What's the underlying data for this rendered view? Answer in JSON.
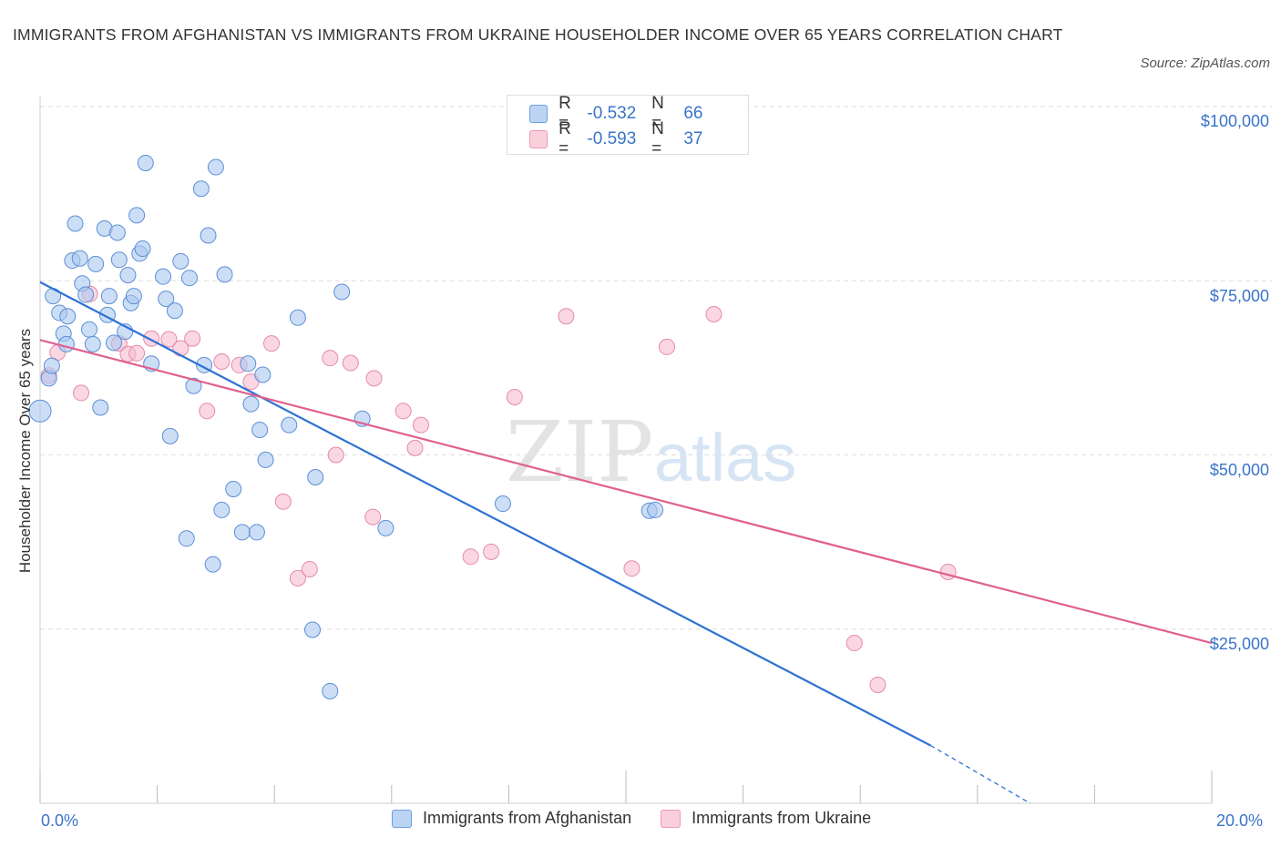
{
  "title": "IMMIGRANTS FROM AFGHANISTAN VS IMMIGRANTS FROM UKRAINE HOUSEHOLDER INCOME OVER 65 YEARS CORRELATION CHART",
  "source": "Source: ZipAtlas.com",
  "watermark": {
    "zip": "ZIP",
    "atlas": "atlas"
  },
  "legend_top": [
    {
      "r_label": "R =",
      "r_value": "-0.532",
      "n_label": "N =",
      "n_value": "66",
      "color": "#aac8f0"
    },
    {
      "r_label": "R =",
      "r_value": "-0.593",
      "n_label": "N =",
      "n_value": "37",
      "color": "#f7bdd0"
    }
  ],
  "chart_data": {
    "type": "scatter",
    "title": "IMMIGRANTS FROM AFGHANISTAN VS IMMIGRANTS FROM UKRAINE HOUSEHOLDER INCOME OVER 65 YEARS CORRELATION CHART",
    "xlabel": "",
    "ylabel": "Householder Income Over 65 years",
    "xlim": [
      0,
      20
    ],
    "ylim": [
      0,
      100000
    ],
    "x_tick_labels": [
      "0.0%",
      "20.0%"
    ],
    "y_ticks": [
      25000,
      50000,
      75000,
      100000
    ],
    "y_tick_labels": [
      "$25,000",
      "$50,000",
      "$75,000",
      "$100,000"
    ],
    "grid": true,
    "legend_position": "bottom",
    "series": [
      {
        "name": "Immigrants from Afghanistan",
        "color": "#aac8f0",
        "stroke": "#5b8fd6",
        "line_color": "#2e72d2",
        "trend": {
          "x": [
            0,
            15.2
          ],
          "y": [
            74800,
            8300
          ],
          "dashed_to": {
            "x": 16.9,
            "y": 0
          }
        },
        "points": [
          [
            0.0,
            56300
          ],
          [
            0.15,
            61000
          ],
          [
            0.2,
            62800
          ],
          [
            0.22,
            72800
          ],
          [
            0.33,
            70400
          ],
          [
            0.4,
            67400
          ],
          [
            0.45,
            65900
          ],
          [
            0.47,
            69900
          ],
          [
            0.55,
            77900
          ],
          [
            0.6,
            83200
          ],
          [
            0.68,
            78200
          ],
          [
            0.72,
            74600
          ],
          [
            0.78,
            73000
          ],
          [
            0.84,
            68000
          ],
          [
            0.9,
            65900
          ],
          [
            0.95,
            77400
          ],
          [
            1.03,
            56800
          ],
          [
            1.1,
            82500
          ],
          [
            1.15,
            70100
          ],
          [
            1.18,
            72800
          ],
          [
            1.26,
            66100
          ],
          [
            1.32,
            81900
          ],
          [
            1.35,
            78000
          ],
          [
            1.45,
            67700
          ],
          [
            1.5,
            75800
          ],
          [
            1.55,
            71800
          ],
          [
            1.6,
            72800
          ],
          [
            1.65,
            84400
          ],
          [
            1.7,
            78900
          ],
          [
            1.75,
            79600
          ],
          [
            1.8,
            91900
          ],
          [
            1.9,
            63100
          ],
          [
            2.1,
            75600
          ],
          [
            2.15,
            72400
          ],
          [
            2.22,
            52700
          ],
          [
            2.3,
            70700
          ],
          [
            2.4,
            77800
          ],
          [
            2.5,
            38000
          ],
          [
            2.55,
            75400
          ],
          [
            2.62,
            59900
          ],
          [
            2.75,
            88200
          ],
          [
            2.8,
            62900
          ],
          [
            2.87,
            81500
          ],
          [
            2.95,
            34300
          ],
          [
            3.0,
            91300
          ],
          [
            3.1,
            42100
          ],
          [
            3.15,
            75900
          ],
          [
            3.3,
            45100
          ],
          [
            3.45,
            38900
          ],
          [
            3.55,
            63100
          ],
          [
            3.6,
            57300
          ],
          [
            3.7,
            38900
          ],
          [
            3.75,
            53600
          ],
          [
            3.8,
            61500
          ],
          [
            3.85,
            49300
          ],
          [
            4.25,
            54300
          ],
          [
            4.4,
            69700
          ],
          [
            4.65,
            24900
          ],
          [
            4.7,
            46800
          ],
          [
            4.95,
            16100
          ],
          [
            5.15,
            73400
          ],
          [
            5.5,
            55200
          ],
          [
            5.9,
            39500
          ],
          [
            7.9,
            43000
          ],
          [
            10.4,
            42000
          ],
          [
            10.5,
            42100
          ]
        ]
      },
      {
        "name": "Immigrants from Ukraine",
        "color": "#f7bdd0",
        "stroke": "#e58aa8",
        "line_color": "#e0608e",
        "trend": {
          "x": [
            0,
            20
          ],
          "y": [
            66500,
            23000
          ]
        },
        "points": [
          [
            0.15,
            61400
          ],
          [
            0.3,
            64700
          ],
          [
            0.7,
            58900
          ],
          [
            0.85,
            73100
          ],
          [
            1.35,
            66000
          ],
          [
            1.5,
            64500
          ],
          [
            1.65,
            64600
          ],
          [
            1.9,
            66700
          ],
          [
            2.2,
            66600
          ],
          [
            2.4,
            65300
          ],
          [
            2.6,
            66700
          ],
          [
            2.85,
            56300
          ],
          [
            3.1,
            63400
          ],
          [
            3.4,
            62900
          ],
          [
            3.6,
            60500
          ],
          [
            3.95,
            66000
          ],
          [
            4.15,
            43300
          ],
          [
            4.4,
            32300
          ],
          [
            4.6,
            33600
          ],
          [
            4.95,
            63900
          ],
          [
            5.05,
            50000
          ],
          [
            5.3,
            63200
          ],
          [
            5.68,
            41100
          ],
          [
            5.7,
            61000
          ],
          [
            6.2,
            56300
          ],
          [
            6.4,
            51000
          ],
          [
            6.5,
            54300
          ],
          [
            7.35,
            35400
          ],
          [
            7.7,
            36100
          ],
          [
            8.1,
            58300
          ],
          [
            8.98,
            69900
          ],
          [
            10.1,
            33700
          ],
          [
            10.7,
            65500
          ],
          [
            11.5,
            70200
          ],
          [
            13.9,
            23000
          ],
          [
            14.3,
            17000
          ],
          [
            15.5,
            33200
          ]
        ]
      }
    ]
  }
}
